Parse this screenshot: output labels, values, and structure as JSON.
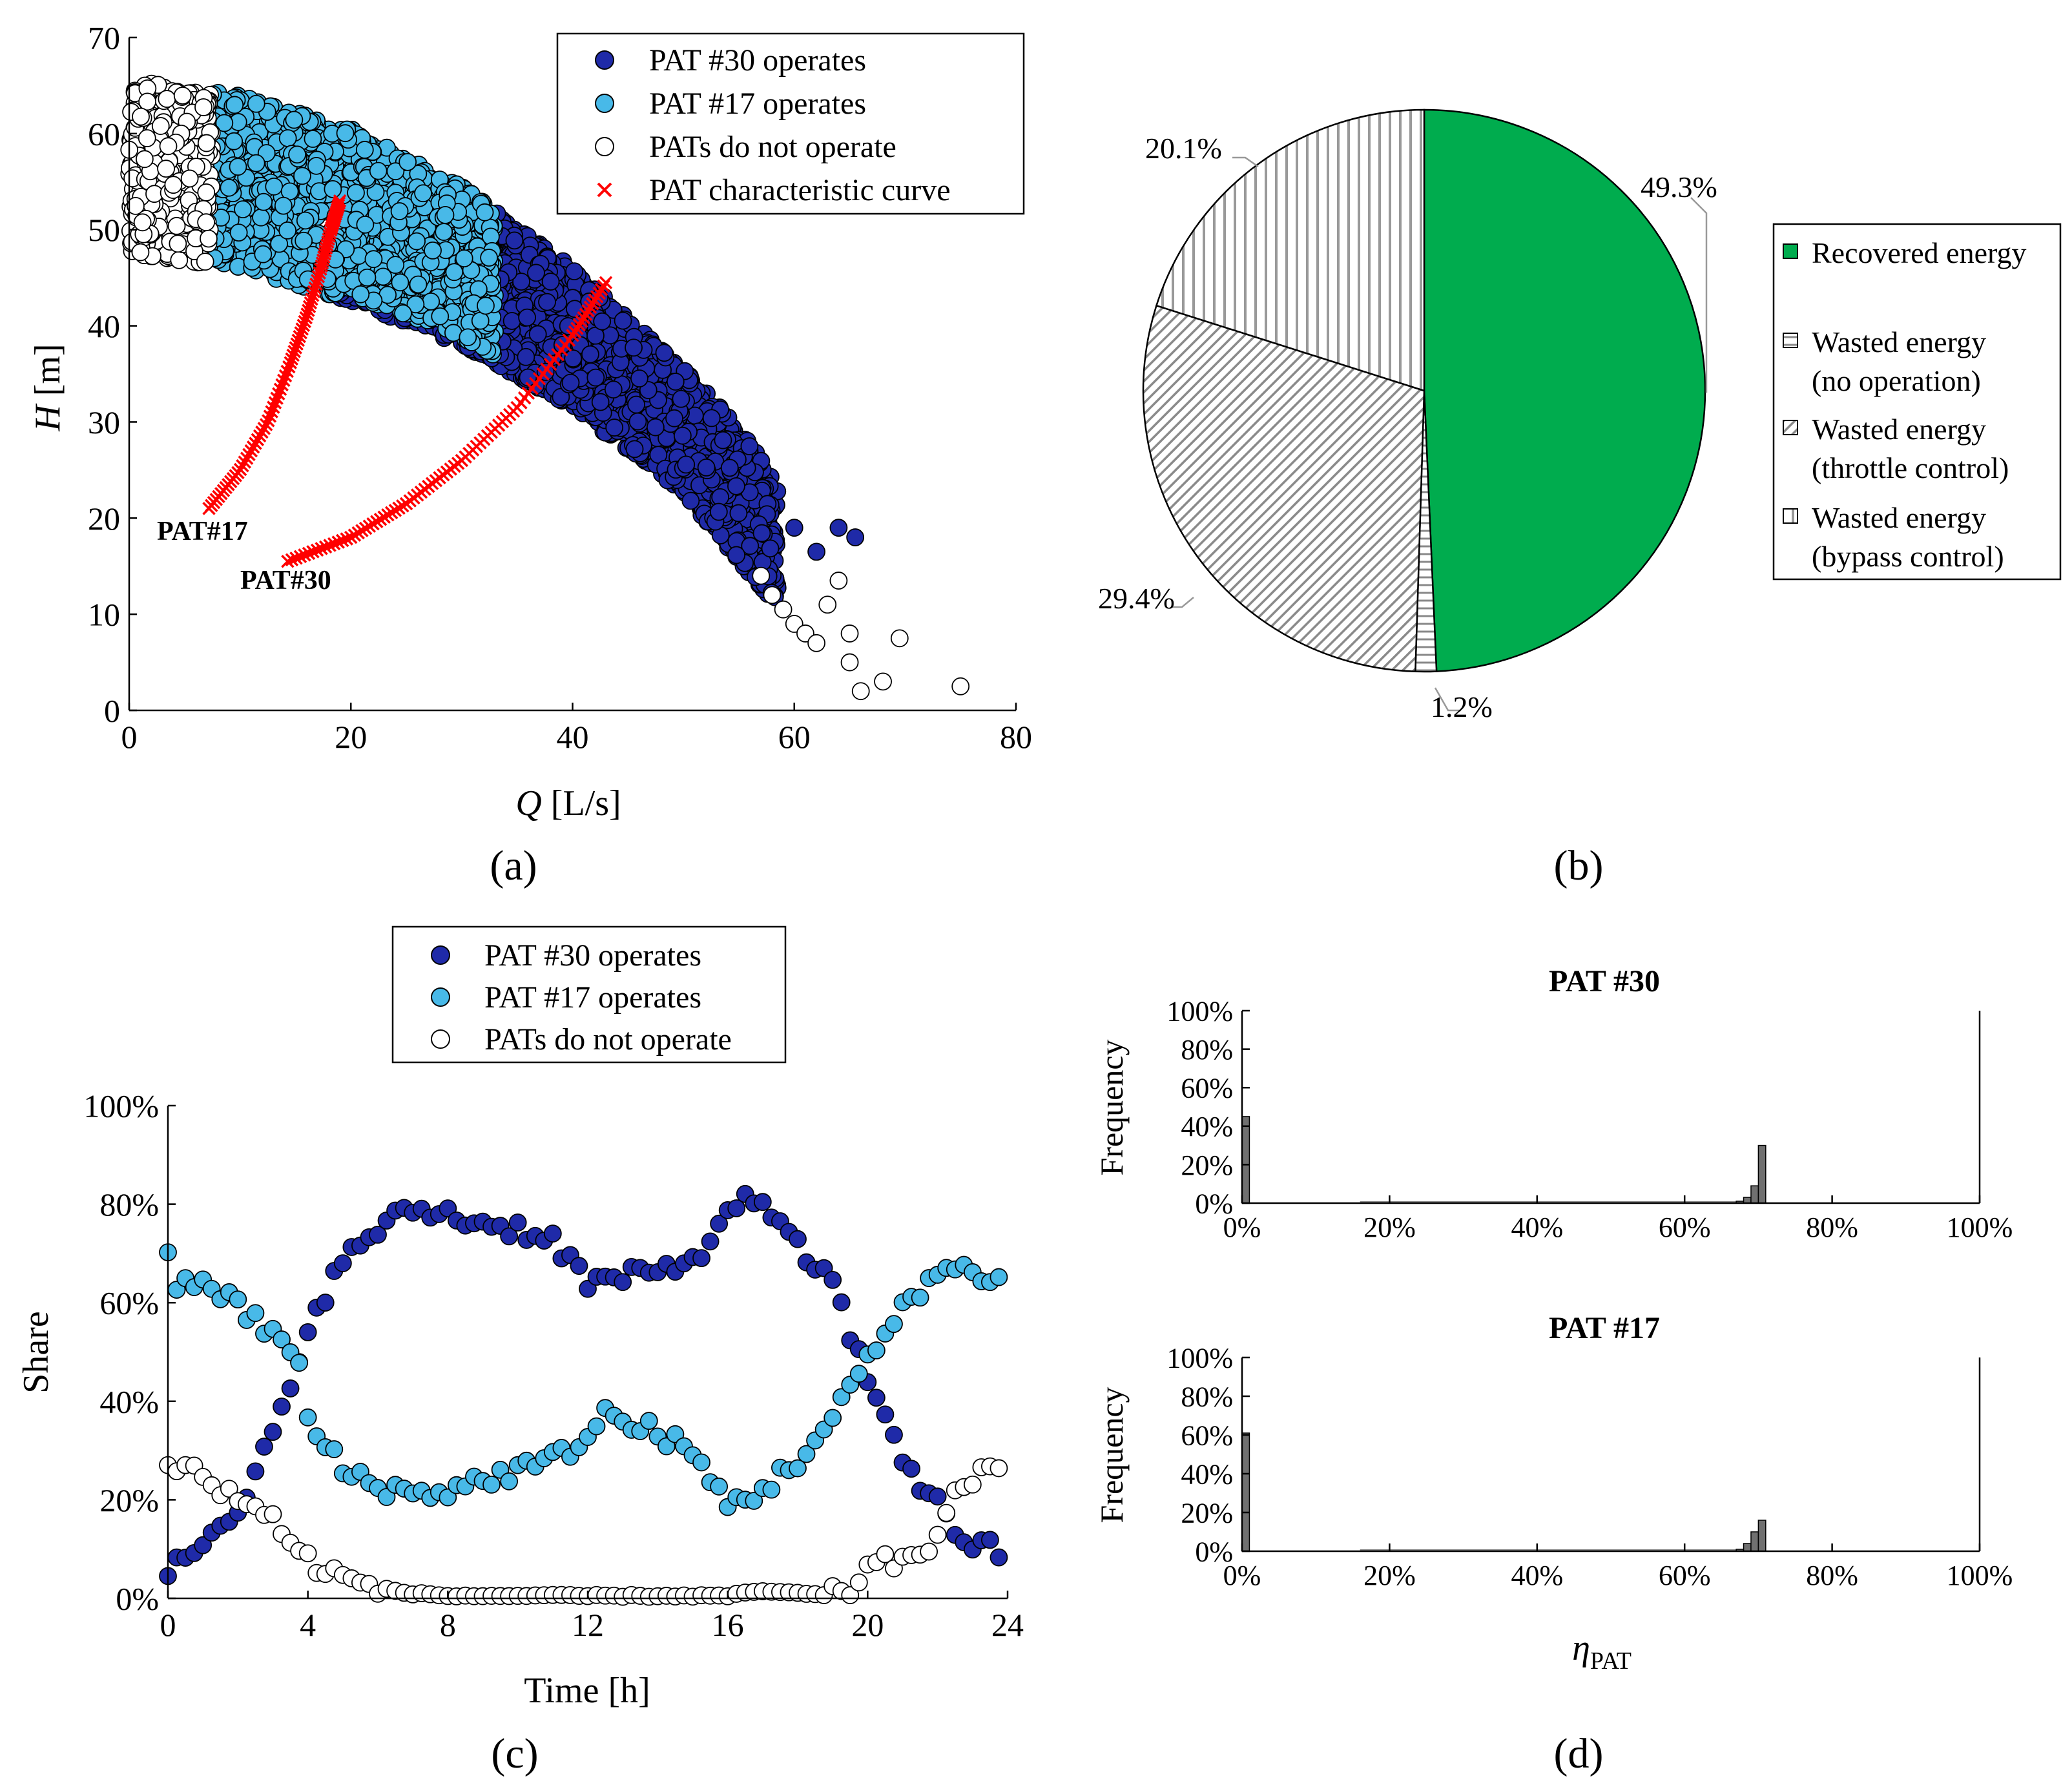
{
  "colors": {
    "pat30": "#1f2aa8",
    "pat17": "#48b9e8",
    "none": "#ffffff",
    "curve": "#ff0000",
    "recovered": "#00ac4e",
    "bar": "#707070"
  },
  "chart_data": [
    {
      "id": "a",
      "type": "scatter",
      "panel_label": "(a)",
      "xlabel": "Q [L/s]",
      "xlabel_var": "Q",
      "xlabel_unit": "[L/s]",
      "ylabel": "H [m]",
      "ylabel_var": "H",
      "ylabel_unit": "[m]",
      "xlim": [
        0,
        80
      ],
      "ylim": [
        0,
        70
      ],
      "xticks": [
        0,
        20,
        40,
        60,
        80
      ],
      "yticks": [
        0,
        10,
        20,
        30,
        40,
        50,
        60,
        70
      ],
      "legend": [
        "PAT #30 operates",
        "PAT #17 operates",
        "PATs do not operate",
        "PAT characteristic curve"
      ],
      "legend_position": "top-right",
      "envelope": {
        "upper": [
          [
            0,
            66
          ],
          [
            10,
            64.5
          ],
          [
            20,
            61
          ],
          [
            30,
            55
          ],
          [
            40,
            46.5
          ],
          [
            50,
            36
          ],
          [
            55,
            30
          ],
          [
            58,
            25
          ],
          [
            61,
            19
          ],
          [
            65,
            12
          ],
          [
            75,
            3
          ]
        ],
        "lower": [
          [
            0,
            47
          ],
          [
            10,
            45.5
          ],
          [
            20,
            42
          ],
          [
            30,
            37.5
          ],
          [
            40,
            31
          ],
          [
            50,
            22
          ],
          [
            55,
            15
          ],
          [
            58,
            11
          ],
          [
            61,
            7
          ]
        ]
      },
      "regions": {
        "none_q_max": 7.5,
        "pat17_q_range": [
          7.5,
          33
        ],
        "pat30_q_min": 19
      },
      "outlier_points": [
        [
          57,
          14
        ],
        [
          58,
          12
        ],
        [
          59,
          10.5
        ],
        [
          60,
          9
        ],
        [
          61,
          8
        ],
        [
          62,
          7
        ],
        [
          63,
          11
        ],
        [
          64,
          13.5
        ],
        [
          65,
          8
        ],
        [
          65,
          5
        ],
        [
          66,
          2
        ],
        [
          68,
          3
        ],
        [
          69.5,
          7.5
        ],
        [
          75,
          2.5
        ],
        [
          64,
          19
        ],
        [
          65.5,
          18
        ],
        [
          60,
          19
        ],
        [
          62,
          16.5
        ]
      ],
      "curves": [
        {
          "label": "PAT#17",
          "points": [
            [
              7.2,
              21
            ],
            [
              10,
              25
            ],
            [
              12.5,
              30
            ],
            [
              14.5,
              36
            ],
            [
              16,
              41
            ],
            [
              17.3,
              46
            ],
            [
              18.2,
              50
            ],
            [
              19,
              53
            ]
          ]
        },
        {
          "label": "PAT#30",
          "points": [
            [
              14.3,
              15.5
            ],
            [
              20,
              18
            ],
            [
              25,
              21.5
            ],
            [
              30,
              26
            ],
            [
              35,
              31.5
            ],
            [
              40,
              39
            ],
            [
              43,
              44.5
            ]
          ]
        }
      ]
    },
    {
      "id": "b",
      "type": "pie",
      "panel_label": "(b)",
      "slices": [
        {
          "label": "Recovered energy",
          "value": 49.3,
          "text": "49.3%"
        },
        {
          "label": "Wasted energy (no operation)",
          "value": 1.2,
          "text": "1.2%"
        },
        {
          "label": "Wasted energy (throttle control)",
          "value": 29.4,
          "text": "29.4%"
        },
        {
          "label": "Wasted energy (bypass control)",
          "value": 20.1,
          "text": "20.1%"
        }
      ],
      "legend": [
        {
          "line1": "Recovered energy",
          "line2": ""
        },
        {
          "line1": "Wasted energy",
          "line2": "(no operation)"
        },
        {
          "line1": "Wasted energy",
          "line2": "(throttle control)"
        },
        {
          "line1": "Wasted energy",
          "line2": "(bypass control)"
        }
      ],
      "legend_position": "right"
    },
    {
      "id": "c",
      "type": "scatter",
      "panel_label": "(c)",
      "xlabel": "Time [h]",
      "ylabel": "Share",
      "xlim": [
        0,
        24
      ],
      "ylim": [
        0,
        100
      ],
      "xticks": [
        0,
        4,
        8,
        12,
        16,
        20,
        24
      ],
      "xtick_labels": [
        "0",
        "4",
        "8",
        "12",
        "16",
        "20",
        "24"
      ],
      "yticks": [
        0,
        20,
        40,
        60,
        80,
        100
      ],
      "ytick_labels": [
        "0%",
        "20%",
        "40%",
        "60%",
        "80%",
        "100%"
      ],
      "legend": [
        "PAT #30 operates",
        "PAT #17 operates",
        "PATs do not operate"
      ],
      "legend_position": "top-center",
      "series": [
        {
          "name": "PAT #30 operates",
          "keyframes": [
            [
              0,
              6
            ],
            [
              0.25,
              10
            ],
            [
              1,
              10
            ],
            [
              2,
              17
            ],
            [
              2.5,
              25
            ],
            [
              3,
              33
            ],
            [
              3.5,
              42
            ],
            [
              4,
              56
            ],
            [
              5,
              68
            ],
            [
              6,
              75
            ],
            [
              7,
              79
            ],
            [
              8,
              78
            ],
            [
              9,
              76
            ],
            [
              10,
              75
            ],
            [
              11,
              73
            ],
            [
              12,
              64
            ],
            [
              13,
              65
            ],
            [
              14,
              66
            ],
            [
              15,
              69
            ],
            [
              16,
              77
            ],
            [
              16.5,
              83
            ],
            [
              17,
              79
            ],
            [
              18,
              71
            ],
            [
              19,
              64
            ],
            [
              19.5,
              54
            ],
            [
              20,
              44
            ],
            [
              20.5,
              38
            ],
            [
              21,
              29
            ],
            [
              21.5,
              23
            ],
            [
              22,
              19
            ],
            [
              22.5,
              14
            ],
            [
              23,
              11
            ],
            [
              24,
              9
            ]
          ]
        },
        {
          "name": "PAT #17 operates",
          "keyframes": [
            [
              0,
              69
            ],
            [
              0.25,
              63
            ],
            [
              1,
              65
            ],
            [
              2,
              59
            ],
            [
              3,
              54
            ],
            [
              3.5,
              50
            ],
            [
              3.8,
              46
            ],
            [
              4,
              36
            ],
            [
              5,
              26
            ],
            [
              6,
              23
            ],
            [
              7,
              21
            ],
            [
              8,
              22
            ],
            [
              9,
              24
            ],
            [
              10,
              26
            ],
            [
              11,
              28
            ],
            [
              12,
              33
            ],
            [
              12.5,
              38
            ],
            [
              13,
              35
            ],
            [
              14,
              34
            ],
            [
              15,
              29
            ],
            [
              16,
              19
            ],
            [
              17,
              22
            ],
            [
              18,
              28
            ],
            [
              19,
              36
            ],
            [
              20,
              49
            ],
            [
              20.5,
              52
            ],
            [
              21,
              60
            ],
            [
              22,
              66
            ],
            [
              22.5,
              67
            ],
            [
              23,
              66
            ],
            [
              24,
              65
            ]
          ]
        },
        {
          "name": "PATs do not operate",
          "keyframes": [
            [
              0,
              26
            ],
            [
              0.5,
              28
            ],
            [
              1,
              24
            ],
            [
              2,
              20
            ],
            [
              3,
              17
            ],
            [
              3.5,
              10
            ],
            [
              4,
              8
            ],
            [
              5,
              4
            ],
            [
              6,
              2
            ],
            [
              7,
              1
            ],
            [
              8,
              0.5
            ],
            [
              12,
              0.5
            ],
            [
              16,
              0.5
            ],
            [
              17,
              1.5
            ],
            [
              18,
              1
            ],
            [
              19,
              0.5
            ],
            [
              19.5,
              2
            ],
            [
              20,
              6
            ],
            [
              21,
              8
            ],
            [
              22,
              12
            ],
            [
              22.5,
              20
            ],
            [
              23,
              25
            ],
            [
              24,
              25
            ]
          ]
        }
      ]
    },
    {
      "id": "d1",
      "type": "bar",
      "panel_label": "(d)",
      "title": "PAT #30",
      "xlabel": "",
      "ylabel": "Frequency",
      "xlim": [
        0,
        100
      ],
      "ylim": [
        0,
        100
      ],
      "xticks": [
        0,
        20,
        40,
        60,
        80,
        100
      ],
      "xtick_labels": [
        "0%",
        "20%",
        "40%",
        "60%",
        "80%",
        "100%"
      ],
      "yticks": [
        0,
        20,
        40,
        60,
        80,
        100
      ],
      "ytick_labels": [
        "0%",
        "20%",
        "40%",
        "60%",
        "80%",
        "100%"
      ],
      "bins": [
        {
          "x": 0.5,
          "value": 45
        },
        {
          "x": 67.5,
          "value": 1
        },
        {
          "x": 68.5,
          "value": 3
        },
        {
          "x": 69.5,
          "value": 9
        },
        {
          "x": 70.5,
          "value": 30
        }
      ]
    },
    {
      "id": "d2",
      "type": "bar",
      "title": "PAT #17",
      "xlabel": "ηPAT",
      "xlabel_main": "η",
      "xlabel_sub": "PAT",
      "ylabel": "Frequency",
      "xlim": [
        0,
        100
      ],
      "ylim": [
        0,
        100
      ],
      "xticks": [
        0,
        20,
        40,
        60,
        80,
        100
      ],
      "xtick_labels": [
        "0%",
        "20%",
        "40%",
        "60%",
        "80%",
        "100%"
      ],
      "yticks": [
        0,
        20,
        40,
        60,
        80,
        100
      ],
      "ytick_labels": [
        "0%",
        "20%",
        "40%",
        "60%",
        "80%",
        "100%"
      ],
      "bins": [
        {
          "x": 0.5,
          "value": 61
        },
        {
          "x": 67.5,
          "value": 1
        },
        {
          "x": 68.5,
          "value": 4
        },
        {
          "x": 69.5,
          "value": 10
        },
        {
          "x": 70.5,
          "value": 16
        }
      ]
    }
  ]
}
